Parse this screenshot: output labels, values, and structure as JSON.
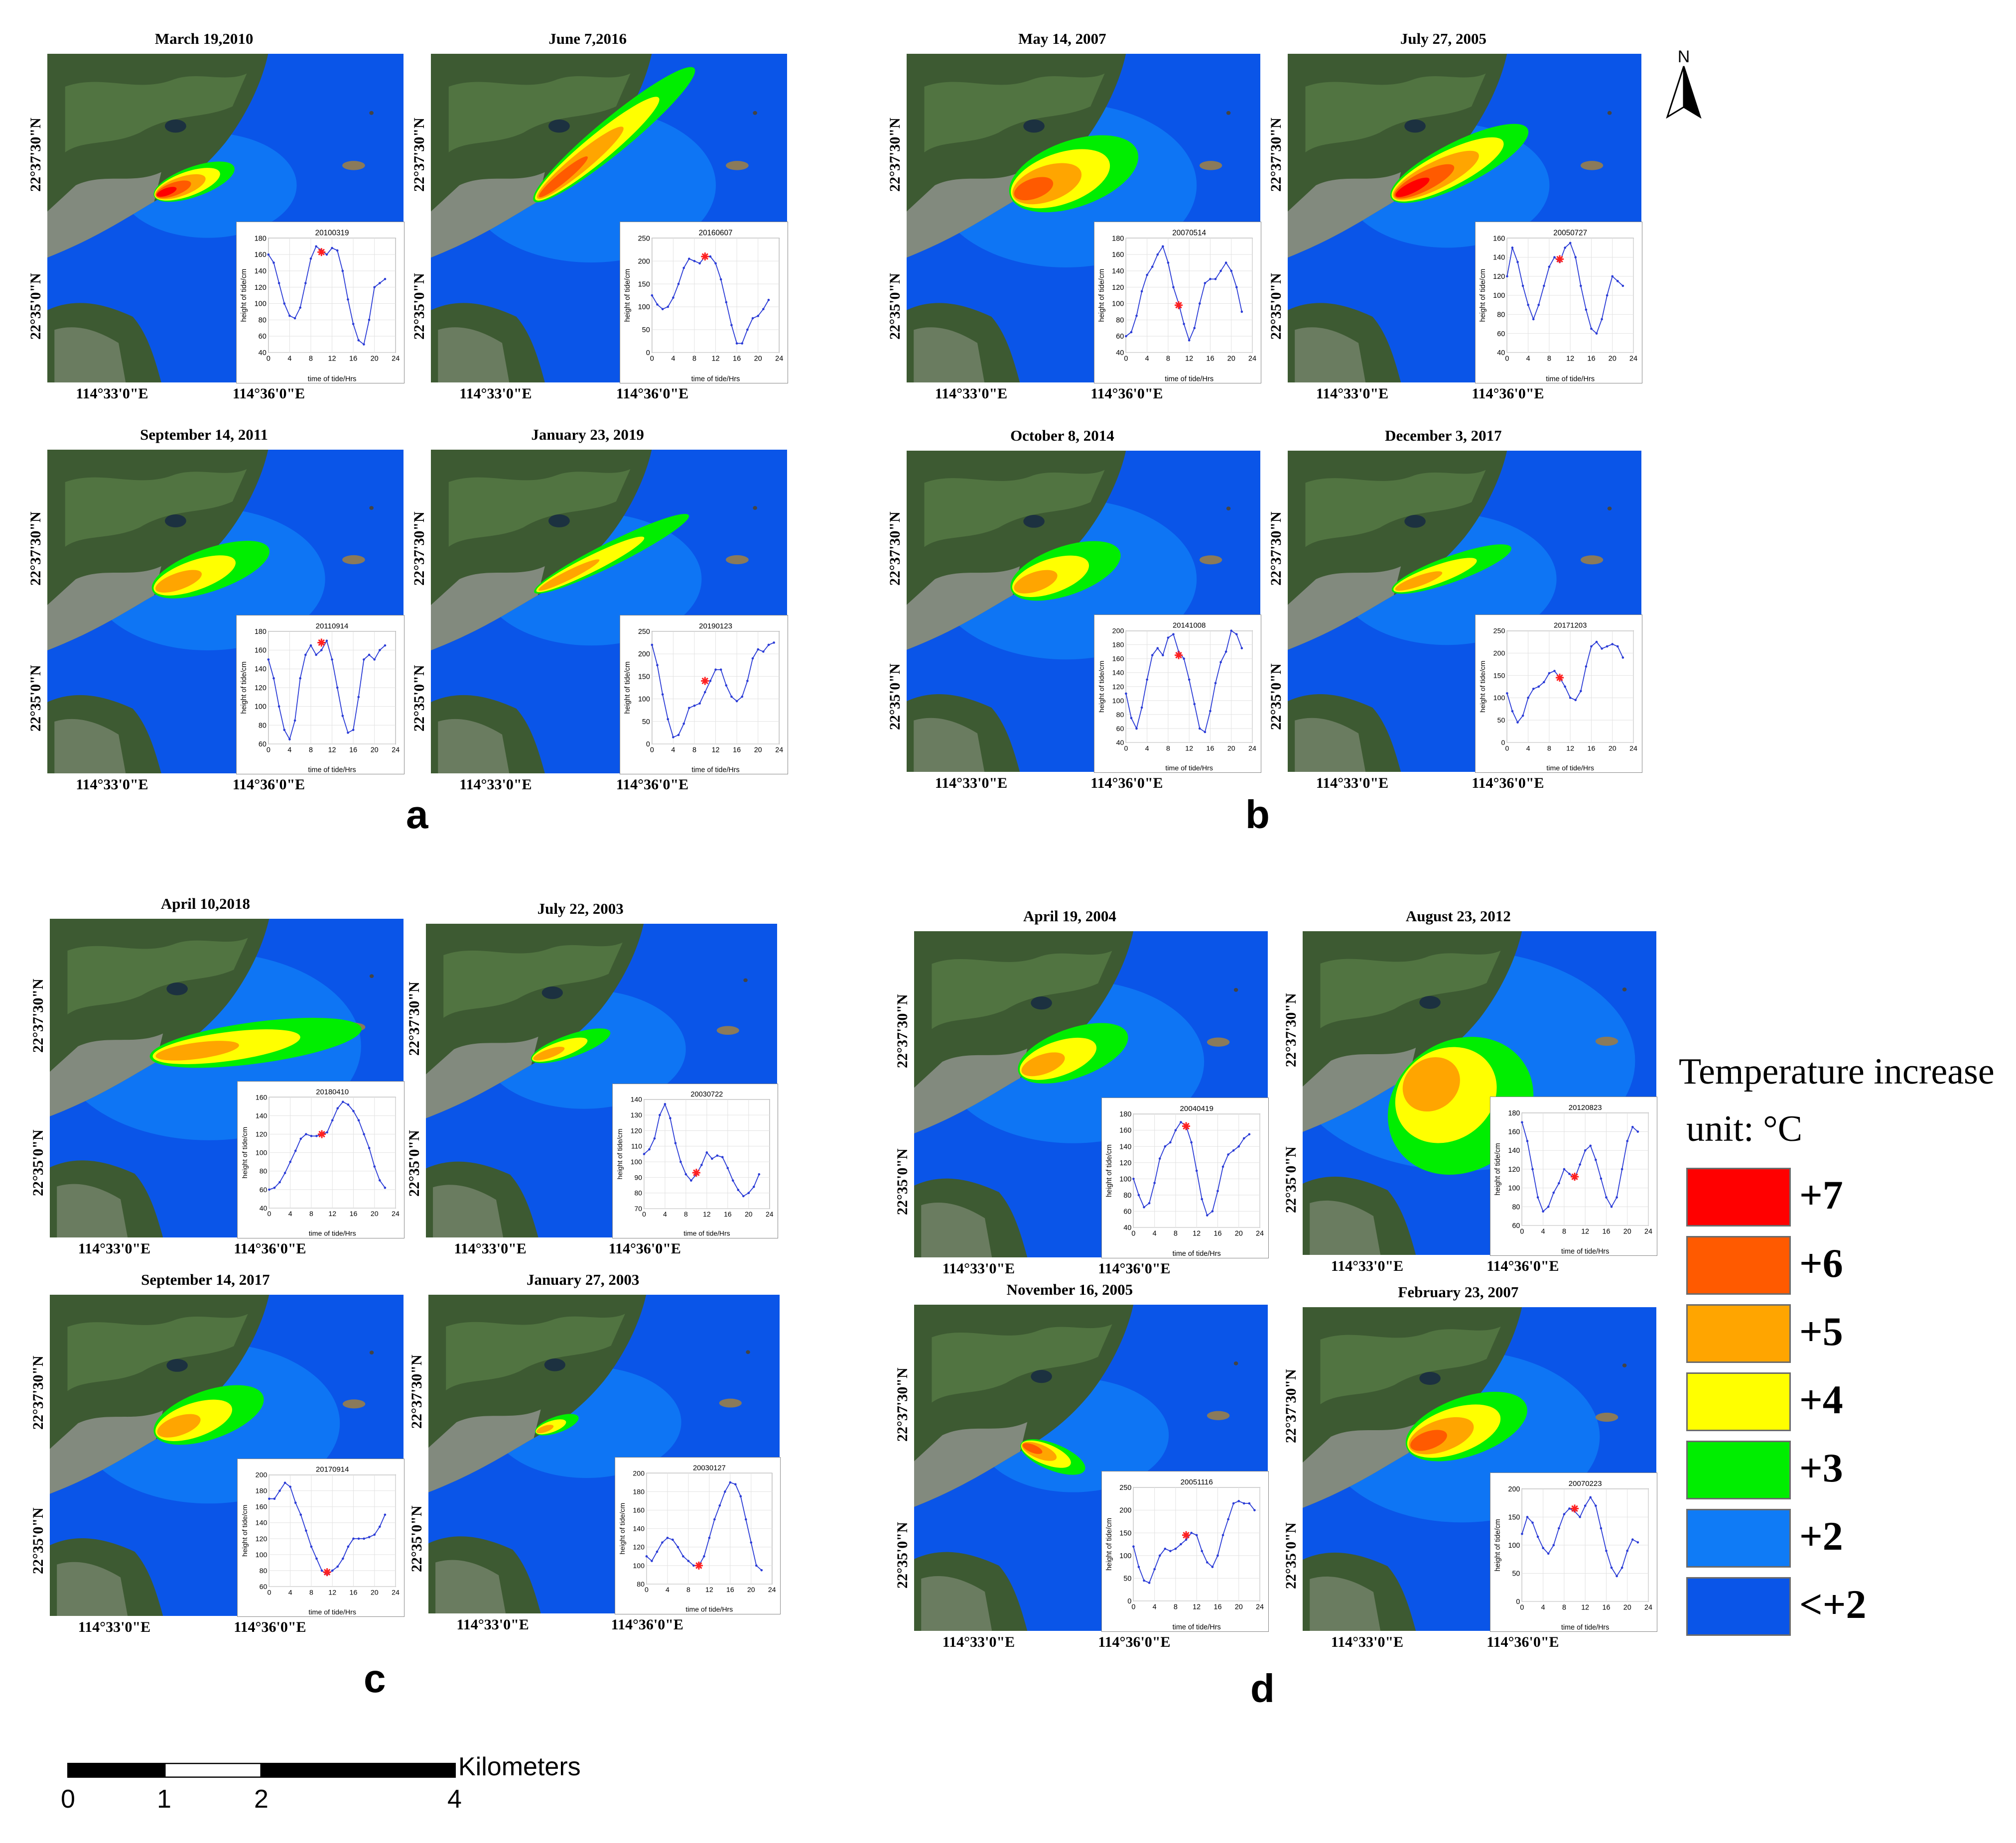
{
  "figure": {
    "group_labels": {
      "a": "a",
      "b": "b",
      "c": "c",
      "d": "d"
    },
    "lat_labels": [
      "22°37'30\"N",
      "22°35'0\"N"
    ],
    "lon_labels": [
      "114°33'0\"E",
      "114°36'0\"E"
    ]
  },
  "panels": [
    {
      "id": "a1",
      "date": "March 19,2010",
      "inset_title": "20100319",
      "plume": "strong-nearshore"
    },
    {
      "id": "a2",
      "date": "June 7,2016",
      "inset_title": "20160607",
      "plume": "long-diagonal"
    },
    {
      "id": "a3",
      "date": "September 14, 2011",
      "inset_title": "20110914",
      "plume": "medium-yellow"
    },
    {
      "id": "a4",
      "date": "January 23, 2019",
      "inset_title": "20190123",
      "plume": "narrow-diagonal"
    },
    {
      "id": "b1",
      "date": "May 14, 2007",
      "inset_title": "20070514",
      "plume": "wide-green"
    },
    {
      "id": "b2",
      "date": "July 27, 2005",
      "inset_title": "20050727",
      "plume": "strong-diagonal"
    },
    {
      "id": "b3",
      "date": "October 8, 2014",
      "inset_title": "20141008",
      "plume": "medium-green"
    },
    {
      "id": "b4",
      "date": "December 3, 2017",
      "inset_title": "20171203",
      "plume": "narrow-yellow"
    },
    {
      "id": "c1",
      "date": "April 10,2018",
      "inset_title": "20180410",
      "plume": "long-green"
    },
    {
      "id": "c2",
      "date": "July 22, 2003",
      "inset_title": "20030722",
      "plume": "small-offshore"
    },
    {
      "id": "c3",
      "date": "September 14, 2017",
      "inset_title": "20170914",
      "plume": "medium-green"
    },
    {
      "id": "c4",
      "date": "January 27, 2003",
      "inset_title": "20030127",
      "plume": "tiny"
    },
    {
      "id": "d1",
      "date": "April 19, 2004",
      "inset_title": "20040419",
      "plume": "medium-green"
    },
    {
      "id": "d2",
      "date": "August 23, 2012",
      "inset_title": "20120823",
      "plume": "huge-green"
    },
    {
      "id": "d3",
      "date": "November 16, 2005",
      "inset_title": "20051116",
      "plume": "small-orange"
    },
    {
      "id": "d4",
      "date": "February 23, 2007",
      "inset_title": "20070223",
      "plume": "strong-wide"
    }
  ],
  "legend": {
    "title": "Temperature  increase",
    "unit": "unit:  °C",
    "items": [
      {
        "label": "+7",
        "color": "#ff0000"
      },
      {
        "label": "+6",
        "color": "#ff5a00"
      },
      {
        "label": "+5",
        "color": "#ffa500"
      },
      {
        "label": "+4",
        "color": "#ffff00"
      },
      {
        "label": "+3",
        "color": "#00ee00"
      },
      {
        "label": "+2",
        "color": "#0f7bf6"
      },
      {
        "label": "<+2",
        "color": "#0a55e8"
      }
    ]
  },
  "north_arrow": {
    "label": "N"
  },
  "scale_bar": {
    "unit": "Kilometers",
    "ticks": [
      "0",
      "1",
      "2",
      "4"
    ]
  },
  "chart_data": [
    {
      "type": "line",
      "title": "20100319",
      "xlabel": "time of tide/Hrs",
      "ylabel": "height of tide/cm",
      "xlim": [
        0,
        24
      ],
      "ylim": [
        40,
        180
      ],
      "x": [
        0,
        1,
        2,
        3,
        4,
        5,
        6,
        7,
        8,
        9,
        10,
        11,
        12,
        13,
        14,
        15,
        16,
        17,
        18,
        19,
        20,
        21,
        22
      ],
      "values": [
        160,
        150,
        125,
        100,
        85,
        82,
        95,
        125,
        155,
        170,
        165,
        160,
        168,
        165,
        140,
        105,
        75,
        55,
        50,
        80,
        120,
        125,
        130
      ],
      "marker": {
        "x": 10,
        "y": 163
      }
    },
    {
      "type": "line",
      "title": "20160607",
      "xlabel": "time of tide/Hrs",
      "ylabel": "height of tide/cm",
      "xlim": [
        0,
        24
      ],
      "ylim": [
        0,
        250
      ],
      "x": [
        0,
        1,
        2,
        3,
        4,
        5,
        6,
        7,
        8,
        9,
        10,
        11,
        12,
        13,
        14,
        15,
        16,
        17,
        18,
        19,
        20,
        21,
        22
      ],
      "values": [
        125,
        105,
        95,
        100,
        120,
        150,
        185,
        205,
        200,
        195,
        210,
        210,
        195,
        160,
        110,
        60,
        20,
        20,
        50,
        75,
        80,
        95,
        115
      ],
      "marker": {
        "x": 10,
        "y": 210
      }
    },
    {
      "type": "line",
      "title": "20110914",
      "xlabel": "time of tide/Hrs",
      "ylabel": "height of tide/cm",
      "xlim": [
        0,
        24
      ],
      "ylim": [
        60,
        180
      ],
      "x": [
        0,
        1,
        2,
        3,
        4,
        5,
        6,
        7,
        8,
        9,
        10,
        11,
        12,
        13,
        14,
        15,
        16,
        17,
        18,
        19,
        20,
        21,
        22
      ],
      "values": [
        150,
        130,
        100,
        75,
        65,
        85,
        130,
        155,
        165,
        155,
        160,
        170,
        150,
        120,
        90,
        72,
        75,
        110,
        150,
        155,
        150,
        160,
        165
      ],
      "marker": {
        "x": 10,
        "y": 168
      }
    },
    {
      "type": "line",
      "title": "20190123",
      "xlabel": "time of tide/Hrs",
      "ylabel": "height of tide/cm",
      "xlim": [
        0,
        24
      ],
      "ylim": [
        0,
        250
      ],
      "x": [
        0,
        1,
        2,
        3,
        4,
        5,
        6,
        7,
        8,
        9,
        10,
        11,
        12,
        13,
        14,
        15,
        16,
        17,
        18,
        19,
        20,
        21,
        22,
        23
      ],
      "values": [
        220,
        175,
        110,
        55,
        15,
        20,
        45,
        80,
        85,
        90,
        115,
        140,
        165,
        165,
        130,
        105,
        95,
        105,
        140,
        190,
        210,
        205,
        220,
        225
      ],
      "marker": {
        "x": 10,
        "y": 140
      }
    },
    {
      "type": "line",
      "title": "20070514",
      "xlabel": "time of tide/Hrs",
      "ylabel": "height of tide/cm",
      "xlim": [
        0,
        24
      ],
      "ylim": [
        40,
        180
      ],
      "x": [
        0,
        1,
        2,
        3,
        4,
        5,
        6,
        7,
        8,
        9,
        10,
        11,
        12,
        13,
        14,
        15,
        16,
        17,
        18,
        19,
        20,
        21,
        22
      ],
      "values": [
        60,
        65,
        85,
        115,
        135,
        145,
        160,
        170,
        150,
        120,
        100,
        75,
        55,
        70,
        100,
        125,
        130,
        130,
        140,
        150,
        140,
        120,
        90
      ],
      "marker": {
        "x": 10,
        "y": 98
      }
    },
    {
      "type": "line",
      "title": "20050727",
      "xlabel": "time of tide/Hrs",
      "ylabel": "height of tide/cm",
      "xlim": [
        0,
        24
      ],
      "ylim": [
        40,
        160
      ],
      "x": [
        0,
        1,
        2,
        3,
        4,
        5,
        6,
        7,
        8,
        9,
        10,
        11,
        12,
        13,
        14,
        15,
        16,
        17,
        18,
        19,
        20,
        21,
        22
      ],
      "values": [
        120,
        150,
        135,
        110,
        90,
        75,
        90,
        110,
        130,
        140,
        135,
        150,
        155,
        140,
        110,
        85,
        65,
        60,
        75,
        100,
        120,
        115,
        110
      ],
      "marker": {
        "x": 10,
        "y": 138
      }
    },
    {
      "type": "line",
      "title": "20141008",
      "xlabel": "time of tide/Hrs",
      "ylabel": "height of tide/cm",
      "xlim": [
        0,
        24
      ],
      "ylim": [
        40,
        200
      ],
      "x": [
        0,
        1,
        2,
        3,
        4,
        5,
        6,
        7,
        8,
        9,
        10,
        11,
        12,
        13,
        14,
        15,
        16,
        17,
        18,
        19,
        20,
        21,
        22
      ],
      "values": [
        110,
        75,
        60,
        90,
        130,
        165,
        175,
        165,
        190,
        195,
        170,
        160,
        130,
        95,
        60,
        55,
        85,
        125,
        155,
        170,
        200,
        195,
        175
      ],
      "marker": {
        "x": 10,
        "y": 165
      }
    },
    {
      "type": "line",
      "title": "20171203",
      "xlabel": "time of tide/Hrs",
      "ylabel": "height of tide/cm",
      "xlim": [
        0,
        24
      ],
      "ylim": [
        0,
        250
      ],
      "x": [
        0,
        1,
        2,
        3,
        4,
        5,
        6,
        7,
        8,
        9,
        10,
        11,
        12,
        13,
        14,
        15,
        16,
        17,
        18,
        19,
        20,
        21,
        22
      ],
      "values": [
        110,
        70,
        45,
        60,
        100,
        120,
        125,
        135,
        155,
        160,
        145,
        125,
        100,
        95,
        115,
        170,
        215,
        225,
        210,
        215,
        220,
        215,
        190
      ],
      "marker": {
        "x": 10,
        "y": 145
      }
    },
    {
      "type": "line",
      "title": "20180410",
      "xlabel": "time of tide/Hrs",
      "ylabel": "height of tide/cm",
      "xlim": [
        0,
        24
      ],
      "ylim": [
        40,
        160
      ],
      "x": [
        0,
        1,
        2,
        3,
        4,
        5,
        6,
        7,
        8,
        9,
        10,
        11,
        12,
        13,
        14,
        15,
        16,
        17,
        18,
        19,
        20,
        21,
        22
      ],
      "values": [
        60,
        62,
        68,
        78,
        90,
        102,
        115,
        120,
        118,
        118,
        120,
        122,
        135,
        148,
        155,
        152,
        145,
        135,
        120,
        105,
        85,
        70,
        62
      ],
      "marker": {
        "x": 10,
        "y": 120
      }
    },
    {
      "type": "line",
      "title": "20030722",
      "xlabel": "time of tide/Hrs",
      "ylabel": "height of tide/cm",
      "xlim": [
        0,
        24
      ],
      "ylim": [
        70,
        140
      ],
      "x": [
        0,
        1,
        2,
        3,
        4,
        5,
        6,
        7,
        8,
        9,
        10,
        11,
        12,
        13,
        14,
        15,
        16,
        17,
        18,
        19,
        20,
        21,
        22
      ],
      "values": [
        105,
        108,
        115,
        130,
        137,
        128,
        112,
        100,
        92,
        88,
        92,
        98,
        106,
        102,
        104,
        103,
        96,
        88,
        82,
        78,
        80,
        84,
        92
      ],
      "marker": {
        "x": 10,
        "y": 93
      }
    },
    {
      "type": "line",
      "title": "20170914",
      "xlabel": "time of tide/Hrs",
      "ylabel": "height of tide/cm",
      "xlim": [
        0,
        24
      ],
      "ylim": [
        60,
        200
      ],
      "x": [
        0,
        1,
        2,
        3,
        4,
        5,
        6,
        7,
        8,
        9,
        10,
        11,
        12,
        13,
        14,
        15,
        16,
        17,
        18,
        19,
        20,
        21,
        22
      ],
      "values": [
        170,
        170,
        180,
        190,
        185,
        165,
        150,
        130,
        110,
        95,
        80,
        75,
        80,
        85,
        95,
        110,
        120,
        120,
        120,
        122,
        125,
        135,
        150
      ],
      "marker": {
        "x": 11,
        "y": 78
      }
    },
    {
      "type": "line",
      "title": "20030127",
      "xlabel": "time of tide/Hrs",
      "ylabel": "height of tide/cm",
      "xlim": [
        0,
        24
      ],
      "ylim": [
        80,
        200
      ],
      "x": [
        0,
        1,
        2,
        3,
        4,
        5,
        6,
        7,
        8,
        9,
        10,
        11,
        12,
        13,
        14,
        15,
        16,
        17,
        18,
        19,
        20,
        21,
        22
      ],
      "values": [
        110,
        105,
        115,
        125,
        130,
        128,
        120,
        110,
        105,
        100,
        100,
        110,
        130,
        150,
        165,
        180,
        190,
        188,
        175,
        150,
        125,
        100,
        95
      ],
      "marker": {
        "x": 10,
        "y": 100
      }
    },
    {
      "type": "line",
      "title": "20040419",
      "xlabel": "time of tide/Hrs",
      "ylabel": "height of tide/cm",
      "xlim": [
        0,
        24
      ],
      "ylim": [
        40,
        180
      ],
      "x": [
        0,
        1,
        2,
        3,
        4,
        5,
        6,
        7,
        8,
        9,
        10,
        11,
        12,
        13,
        14,
        15,
        16,
        17,
        18,
        19,
        20,
        21,
        22
      ],
      "values": [
        100,
        80,
        65,
        70,
        95,
        125,
        140,
        145,
        160,
        170,
        165,
        145,
        110,
        75,
        55,
        60,
        85,
        115,
        130,
        135,
        140,
        150,
        155
      ],
      "marker": {
        "x": 10,
        "y": 165
      }
    },
    {
      "type": "line",
      "title": "20120823",
      "xlabel": "time of tide/Hrs",
      "ylabel": "height of tide/cm",
      "xlim": [
        0,
        24
      ],
      "ylim": [
        60,
        180
      ],
      "x": [
        0,
        1,
        2,
        3,
        4,
        5,
        6,
        7,
        8,
        9,
        10,
        11,
        12,
        13,
        14,
        15,
        16,
        17,
        18,
        19,
        20,
        21,
        22
      ],
      "values": [
        170,
        150,
        120,
        90,
        75,
        80,
        95,
        105,
        120,
        115,
        110,
        125,
        140,
        145,
        130,
        110,
        90,
        80,
        90,
        120,
        150,
        165,
        160
      ],
      "marker": {
        "x": 10,
        "y": 112
      }
    },
    {
      "type": "line",
      "title": "20051116",
      "xlabel": "time of tide/Hrs",
      "ylabel": "height of tide/cm",
      "xlim": [
        0,
        24
      ],
      "ylim": [
        0,
        250
      ],
      "x": [
        0,
        1,
        2,
        3,
        4,
        5,
        6,
        7,
        8,
        9,
        10,
        11,
        12,
        13,
        14,
        15,
        16,
        17,
        18,
        19,
        20,
        21,
        22,
        23
      ],
      "values": [
        120,
        75,
        45,
        40,
        70,
        100,
        115,
        110,
        115,
        125,
        135,
        150,
        145,
        110,
        85,
        75,
        100,
        145,
        180,
        215,
        220,
        215,
        215,
        200
      ],
      "marker": {
        "x": 10,
        "y": 145
      }
    },
    {
      "type": "line",
      "title": "20070223",
      "xlabel": "time of tide/Hrs",
      "ylabel": "height of tide/cm",
      "xlim": [
        0,
        24
      ],
      "ylim": [
        0,
        200
      ],
      "x": [
        0,
        1,
        2,
        3,
        4,
        5,
        6,
        7,
        8,
        9,
        10,
        11,
        12,
        13,
        14,
        15,
        16,
        17,
        18,
        19,
        20,
        21,
        22
      ],
      "values": [
        120,
        150,
        140,
        115,
        95,
        85,
        100,
        130,
        155,
        165,
        160,
        150,
        170,
        185,
        170,
        130,
        90,
        60,
        45,
        60,
        90,
        110,
        105
      ],
      "marker": {
        "x": 10,
        "y": 165
      }
    }
  ]
}
